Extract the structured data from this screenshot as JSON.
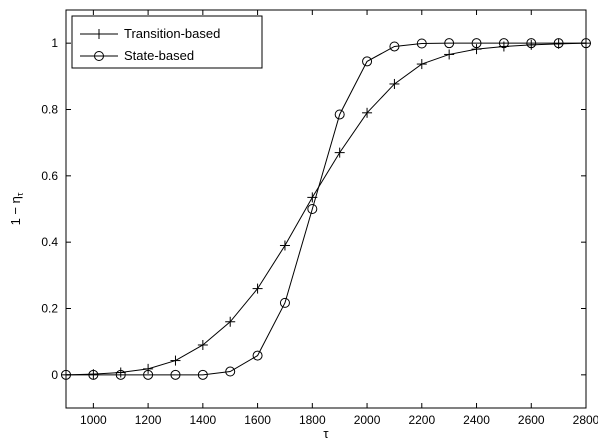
{
  "chart_data": {
    "type": "line",
    "title": "",
    "xlabel": "τ",
    "ylabel": "1 − η",
    "ylabel_subscript": "τ",
    "xlim": [
      900,
      2800
    ],
    "ylim": [
      -0.1,
      1.1
    ],
    "xticks": [
      1000,
      1200,
      1400,
      1600,
      1800,
      2000,
      2200,
      2400,
      2600,
      2800
    ],
    "yticks": [
      0,
      0.2,
      0.4,
      0.6,
      0.8,
      1
    ],
    "grid": false,
    "legend_position": "top-left",
    "x": [
      900,
      1000,
      1100,
      1200,
      1300,
      1400,
      1500,
      1600,
      1700,
      1800,
      1900,
      2000,
      2100,
      2200,
      2300,
      2400,
      2500,
      2600,
      2700,
      2800
    ],
    "series": [
      {
        "name": "Transition-based",
        "marker": "plus",
        "color": "#000000",
        "values": [
          0,
          0.002,
          0.007,
          0.018,
          0.043,
          0.09,
          0.16,
          0.26,
          0.39,
          0.535,
          0.67,
          0.79,
          0.877,
          0.937,
          0.966,
          0.982,
          0.99,
          0.995,
          0.998,
          1.0
        ]
      },
      {
        "name": "State-based",
        "marker": "circle",
        "color": "#000000",
        "values": [
          0,
          0,
          0,
          0,
          0,
          0,
          0.01,
          0.058,
          0.217,
          0.5,
          0.785,
          0.945,
          0.99,
          0.999,
          1.0,
          1.0,
          1.0,
          1.0,
          1.0,
          1.0
        ]
      }
    ]
  }
}
